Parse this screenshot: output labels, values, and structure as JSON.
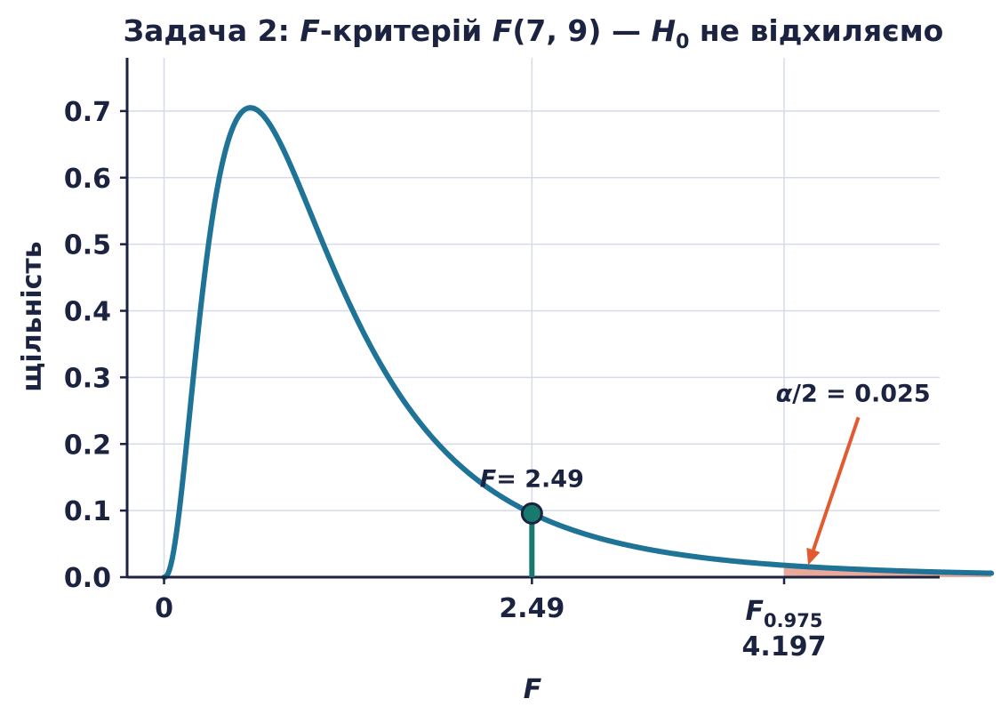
{
  "chart_data": {
    "type": "line",
    "title": {
      "prefix": "Задача 2: ",
      "f1": "F",
      "mid": "-критерій ",
      "f2": "F",
      "args": "(7, 9) — ",
      "h": "H",
      "h_sub": "0",
      "suffix": " не відхиляємо"
    },
    "xlabel": "F",
    "ylabel": "щільність",
    "xlim": [
      -0.25,
      5.25
    ],
    "ylim": [
      0.0,
      0.78
    ],
    "grid": true,
    "yticks": [
      {
        "value": 0.0,
        "label": "0.0"
      },
      {
        "value": 0.1,
        "label": "0.1"
      },
      {
        "value": 0.2,
        "label": "0.2"
      },
      {
        "value": 0.3,
        "label": "0.3"
      },
      {
        "value": 0.4,
        "label": "0.4"
      },
      {
        "value": 0.5,
        "label": "0.5"
      },
      {
        "value": 0.6,
        "label": "0.6"
      },
      {
        "value": 0.7,
        "label": "0.7"
      }
    ],
    "xticks": [
      {
        "value": 0,
        "label": "0"
      },
      {
        "value": 2.49,
        "label": "2.49"
      },
      {
        "value": 4.197,
        "label_main": "F",
        "label_sub": "0.975",
        "label_value": "4.197"
      }
    ],
    "series": [
      {
        "distribution": "F",
        "df1": 7,
        "df2": 9,
        "x_range": [
          0,
          5.6
        ],
        "color": "#1f7396"
      }
    ],
    "critical_region": {
      "from": 4.197,
      "to": 5.6,
      "color": "#e9a89a"
    },
    "statistic": {
      "value": 2.49,
      "label_var": "F",
      "label_rest": "= 2.49",
      "color": "#167a6e"
    },
    "annotation": {
      "label_var": "α",
      "label_rest": "/2 = 0.025",
      "arrow_from": [
        4.7,
        0.24
      ],
      "arrow_to": [
        4.36,
        0.018
      ],
      "color": "#e15a30"
    },
    "colors": {
      "axis": "#1c2340",
      "grid": "#d5dbe7",
      "text": "#1c2340"
    }
  }
}
